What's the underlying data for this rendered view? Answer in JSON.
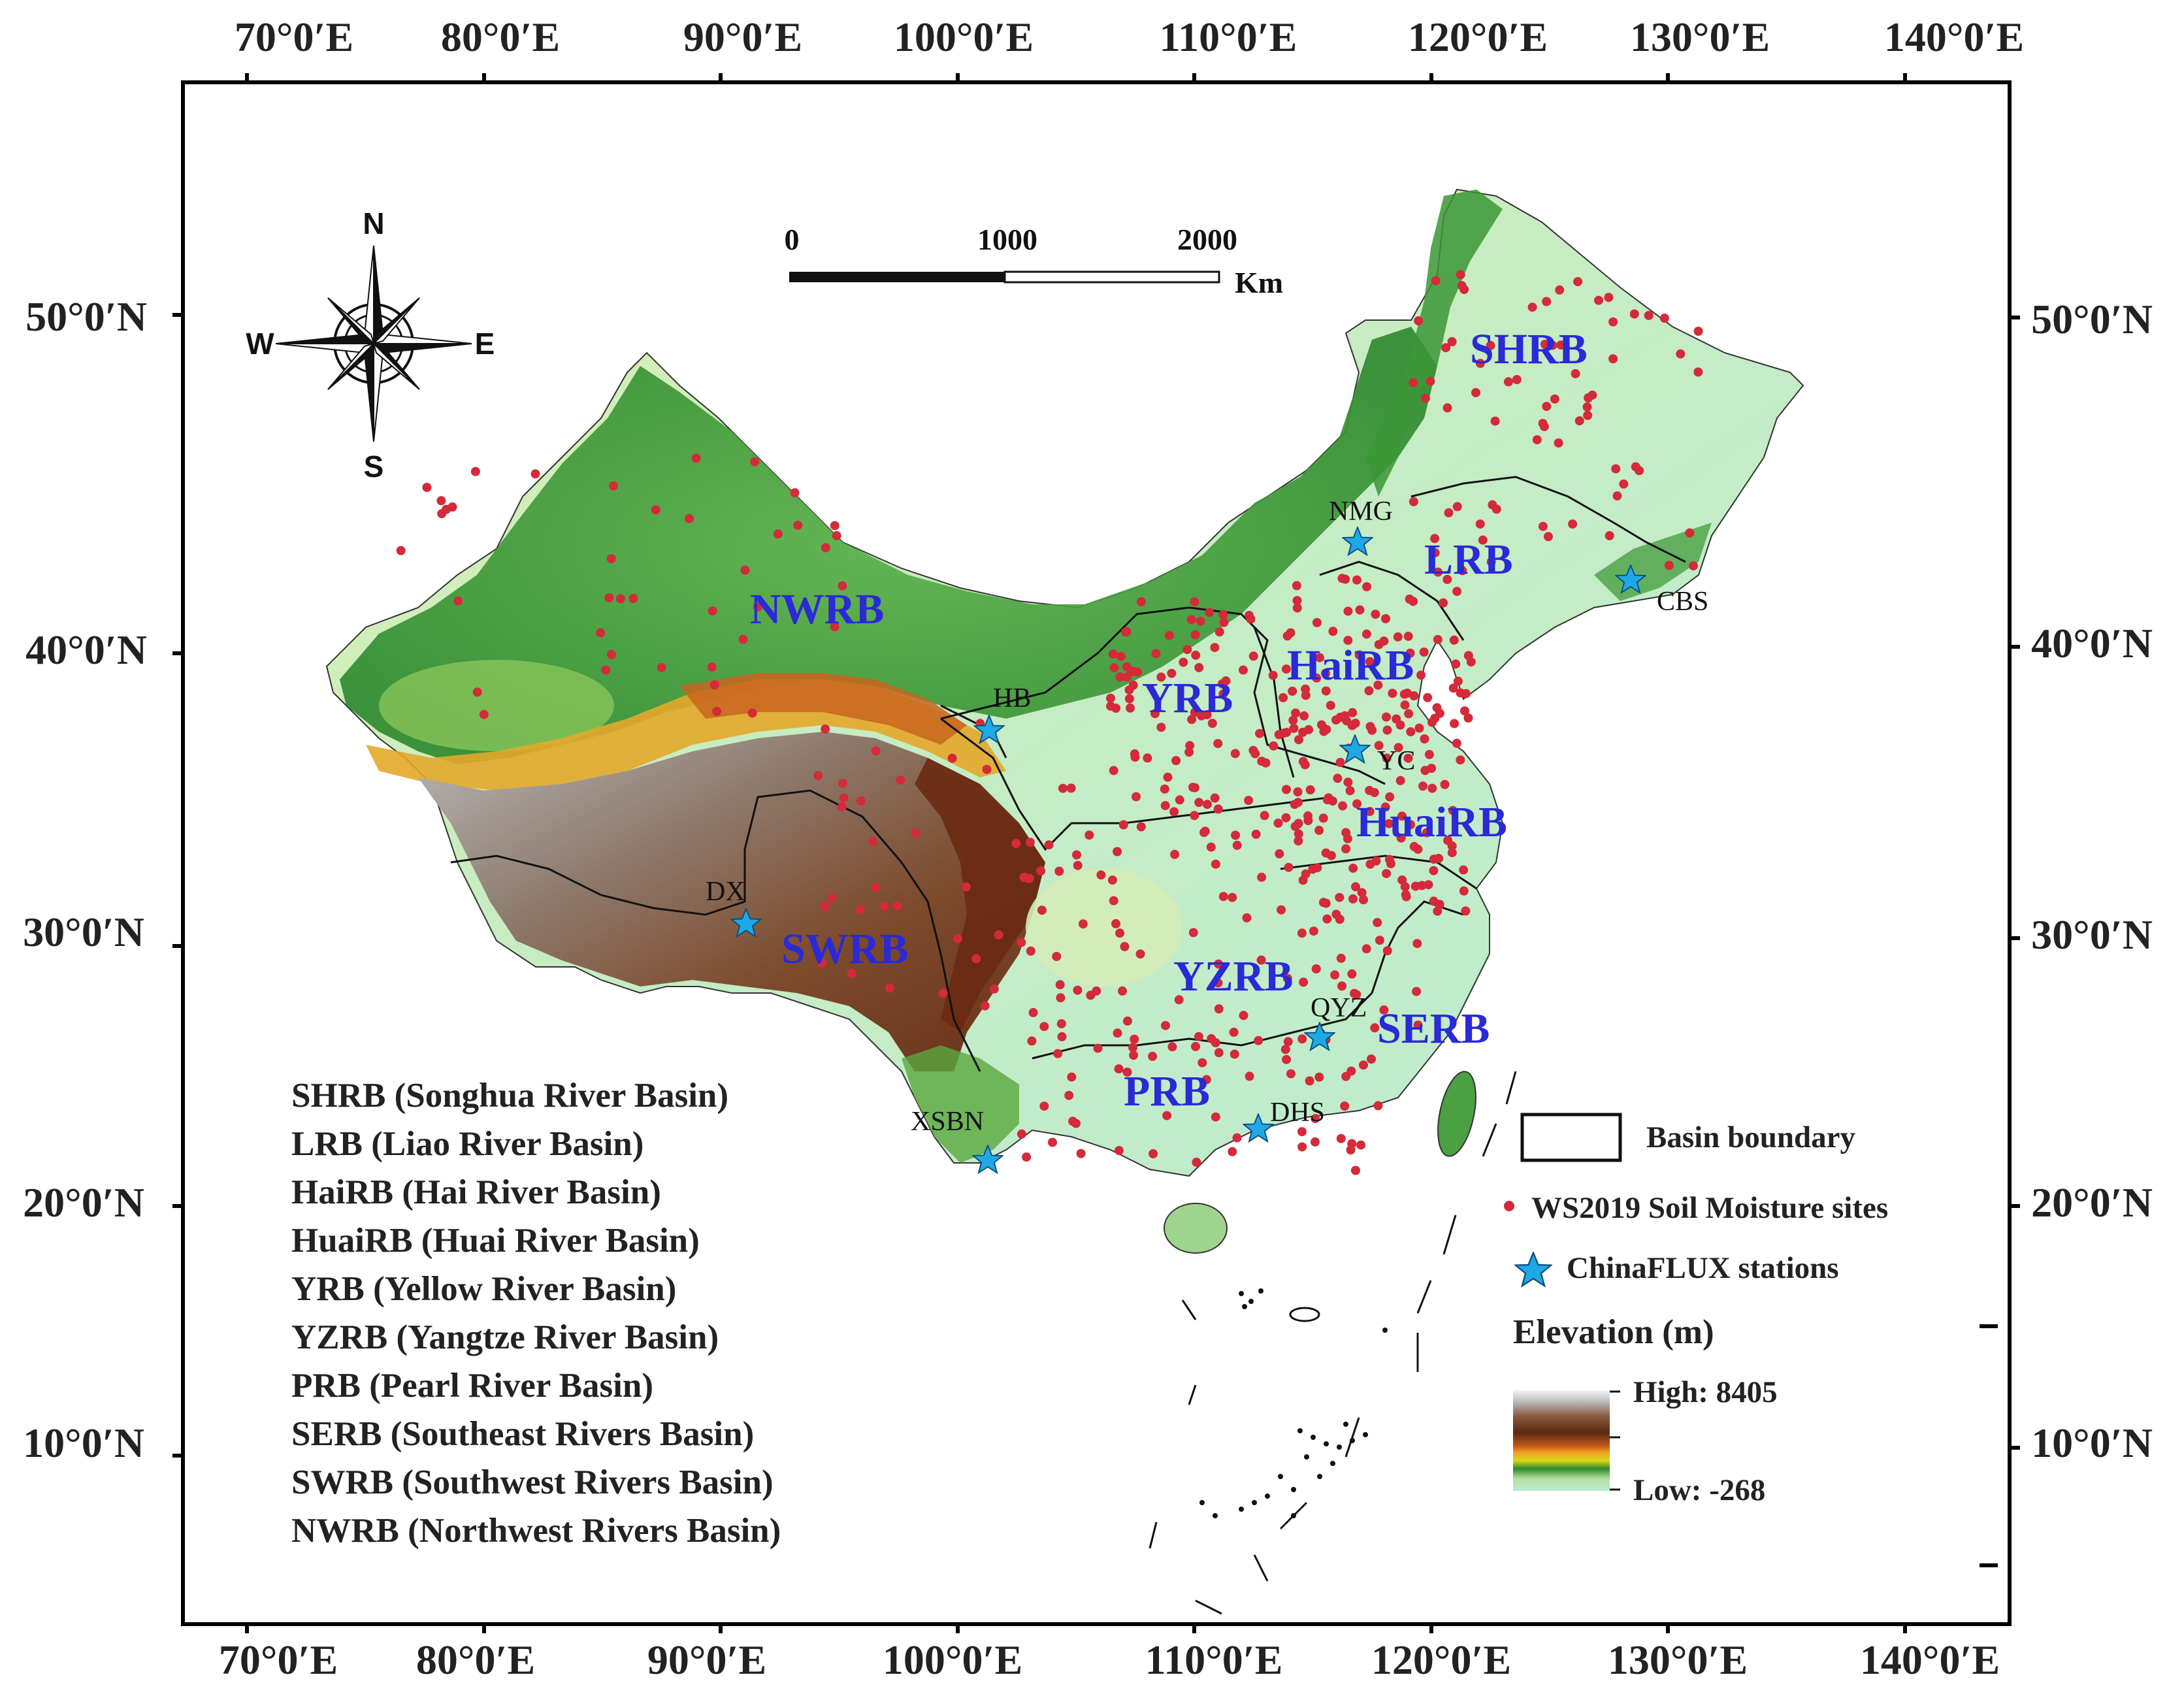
{
  "map": {
    "lon_ticks": [
      "70°0′E",
      "80°0′E",
      "90°0′E",
      "100°0′E",
      "110°0′E",
      "120°0′E",
      "130°0′E",
      "140°0′E"
    ],
    "lat_ticks_left": [
      "50°0′N",
      "40°0′N",
      "30°0′N",
      "20°0′N",
      "10°0′N"
    ],
    "lat_ticks_right": [
      "50°0′N",
      "40°0′N",
      "30°0′N",
      "20°0′N",
      "10°0′N"
    ]
  },
  "compass": {
    "north": "N",
    "south": "S",
    "east": "E",
    "west": "W"
  },
  "scale_bar": {
    "labels": [
      "0",
      "1000",
      "2000"
    ],
    "unit": "Km"
  },
  "basins": [
    {
      "id": "SHRB",
      "label": "SHRB",
      "full_name": "SHRB (Songhua River Basin)"
    },
    {
      "id": "LRB",
      "label": "LRB",
      "full_name": "LRB (Liao River Basin)"
    },
    {
      "id": "HaiRB",
      "label": "HaiRB",
      "full_name": "HaiRB (Hai River Basin)"
    },
    {
      "id": "HuaiRB",
      "label": "HuaiRB",
      "full_name": "HuaiRB (Huai River Basin)"
    },
    {
      "id": "YRB",
      "label": "YRB",
      "full_name": "YRB (Yellow River Basin)"
    },
    {
      "id": "YZRB",
      "label": "YZRB",
      "full_name": "YZRB (Yangtze River Basin)"
    },
    {
      "id": "PRB",
      "label": "PRB",
      "full_name": "PRB (Pearl River Basin)"
    },
    {
      "id": "SERB",
      "label": "SERB",
      "full_name": "SERB (Southeast Rivers Basin)"
    },
    {
      "id": "SWRB",
      "label": "SWRB",
      "full_name": "SWRB (Southwest Rivers Basin)"
    },
    {
      "id": "NWRB",
      "label": "NWRB",
      "full_name": "NWRB (Northwest Rivers Basin)"
    }
  ],
  "stations": [
    {
      "id": "NMG",
      "label": "NMG"
    },
    {
      "id": "CBS",
      "label": "CBS"
    },
    {
      "id": "HB",
      "label": "HB"
    },
    {
      "id": "YC",
      "label": "YC"
    },
    {
      "id": "DX",
      "label": "DX"
    },
    {
      "id": "QYZ",
      "label": "QYZ"
    },
    {
      "id": "DHS",
      "label": "DHS"
    },
    {
      "id": "XSBN",
      "label": "XSBN"
    }
  ],
  "legend": {
    "basin_boundary": "Basin boundary",
    "soil_sites": "WS2019 Soil Moisture sites",
    "flux_stations": "ChinaFLUX stations",
    "elevation_title": "Elevation (m)",
    "elevation_high": "High: 8405",
    "elevation_low": "Low: -268"
  },
  "colors": {
    "basin_label": "#2a2ad6",
    "site_dot": "#d42a3a",
    "station_star": "#1fa8e6",
    "lowland": "#c6eec0",
    "grassland": "#3f9c3c",
    "plateau": "#7a3d1e",
    "peak": "#e8e8e8"
  }
}
